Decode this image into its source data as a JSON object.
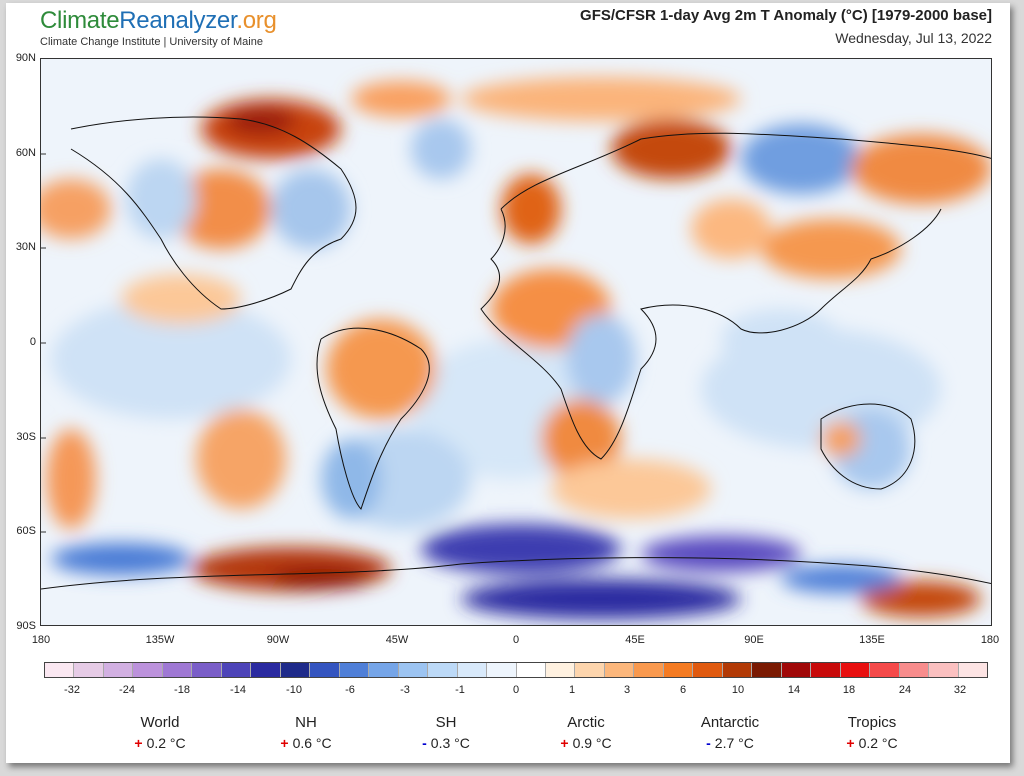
{
  "brand": {
    "part1": "Climate",
    "part2": "Reanalyzer",
    "part3": ".org",
    "subtitle": "Climate Change Institute | University of Maine"
  },
  "header": {
    "title": "GFS/CFSR 1-day Avg 2m T Anomaly (°C) [1979-2000 base]",
    "date": "Wednesday, Jul 13, 2022"
  },
  "lat_ticks": [
    "90N",
    "60N",
    "30N",
    "0",
    "30S",
    "60S",
    "90S"
  ],
  "lon_ticks": [
    "180",
    "135W",
    "90W",
    "45W",
    "0",
    "45E",
    "90E",
    "135E",
    "180"
  ],
  "colorbar": {
    "colors": [
      "#fbe8f2",
      "#e6cbe6",
      "#d2b0e2",
      "#bc92dc",
      "#9f78d4",
      "#7a5ec8",
      "#4d44b8",
      "#2a2aa0",
      "#1e2a8a",
      "#3455c0",
      "#4f7fd8",
      "#75a5e8",
      "#9cc4f2",
      "#bcd9f7",
      "#d8e9fa",
      "#eef5fd",
      "#ffffff",
      "#fff1e0",
      "#fdd5ad",
      "#fcb77c",
      "#f9994e",
      "#f57b22",
      "#e05a10",
      "#b23a06",
      "#7a1a02",
      "#a00808",
      "#c80a0a",
      "#e81010",
      "#f54a4a",
      "#f88c8c",
      "#fbc0c0",
      "#fde4e4"
    ],
    "labels": [
      "-32",
      "-24",
      "-18",
      "-14",
      "-10",
      "-6",
      "-3",
      "-1",
      "0",
      "1",
      "3",
      "6",
      "10",
      "14",
      "18",
      "24",
      "32"
    ]
  },
  "stats": [
    {
      "name": "World",
      "sign": "+",
      "value": "0.2 °C"
    },
    {
      "name": "NH",
      "sign": "+",
      "value": "0.6 °C"
    },
    {
      "name": "SH",
      "sign": "-",
      "value": "0.3 °C"
    },
    {
      "name": "Arctic",
      "sign": "+",
      "value": "0.9 °C"
    },
    {
      "name": "Antarctic",
      "sign": "-",
      "value": "2.7 °C"
    },
    {
      "name": "Tropics",
      "sign": "+",
      "value": "0.2 °C"
    }
  ]
}
